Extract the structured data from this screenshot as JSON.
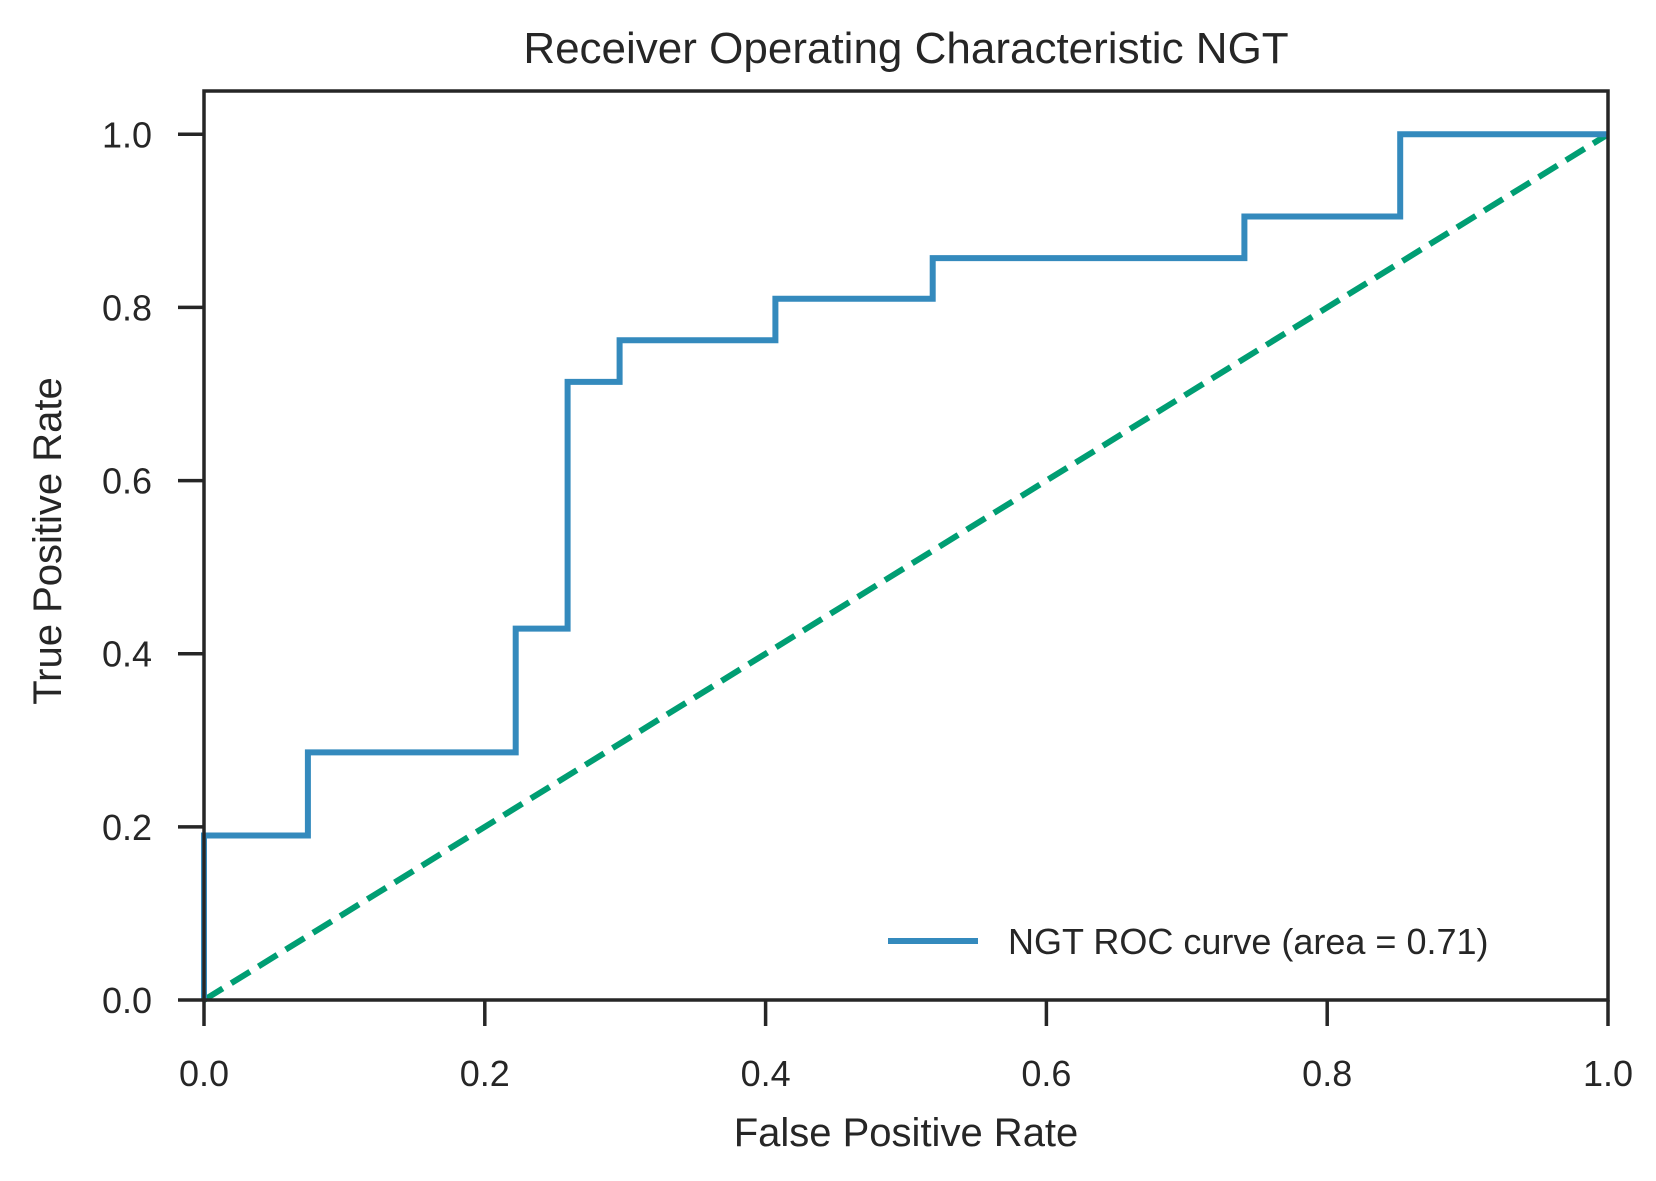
{
  "chart_data": {
    "type": "line",
    "title": "Receiver Operating Characteristic NGT",
    "xlabel": "False Positive Rate",
    "ylabel": "True Positive Rate",
    "xlim": [
      0.0,
      1.0
    ],
    "ylim": [
      0.0,
      1.05
    ],
    "xticks": [
      0.0,
      0.2,
      0.4,
      0.6,
      0.8,
      1.0
    ],
    "xtick_labels": [
      "0.0",
      "0.2",
      "0.4",
      "0.6",
      "0.8",
      "1.0"
    ],
    "yticks": [
      0.0,
      0.2,
      0.4,
      0.6,
      0.8,
      1.0
    ],
    "ytick_labels": [
      "0.0",
      "0.2",
      "0.4",
      "0.6",
      "0.8",
      "1.0"
    ],
    "grid": false,
    "legend_position": "lower-right",
    "series": [
      {
        "name": "NGT ROC curve (area = 0.71)",
        "color": "#348ABD",
        "style": "solid",
        "x": [
          0.0,
          0.0,
          0.0,
          0.074,
          0.074,
          0.222,
          0.222,
          0.259,
          0.259,
          0.296,
          0.296,
          0.407,
          0.407,
          0.519,
          0.519,
          0.741,
          0.741,
          0.852,
          0.852,
          1.0
        ],
        "y": [
          0.0,
          0.048,
          0.19,
          0.19,
          0.286,
          0.286,
          0.429,
          0.429,
          0.714,
          0.714,
          0.762,
          0.762,
          0.81,
          0.81,
          0.857,
          0.857,
          0.905,
          0.905,
          1.0,
          1.0
        ]
      },
      {
        "color": "#009E73",
        "style": "dashed",
        "x": [
          0.0,
          1.0
        ],
        "y": [
          0.0,
          1.0
        ]
      }
    ]
  }
}
